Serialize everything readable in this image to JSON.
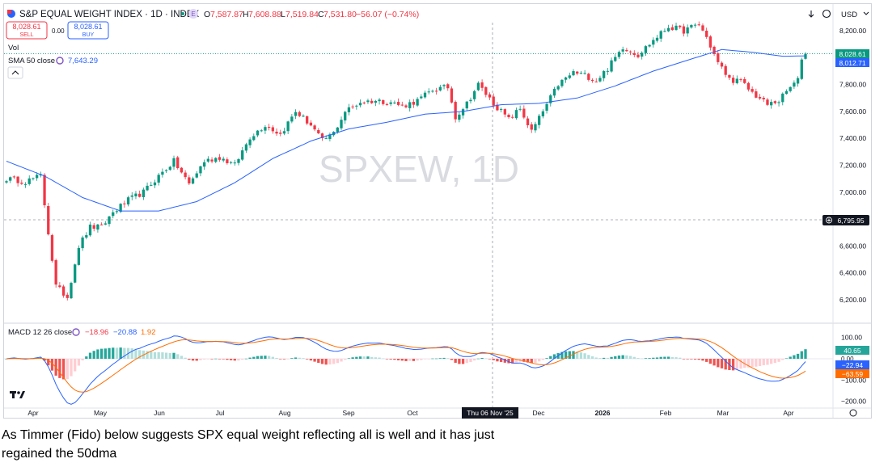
{
  "header": {
    "symbol_title": "S&P EQUAL WEIGHT INDEX · 1D · INDEX",
    "exchange_badge": "E",
    "open_label": "O",
    "open": "7,587.87",
    "high_label": "H",
    "high": "7,608.88",
    "low_label": "L",
    "low": "7,519.84",
    "close_label": "C",
    "close": "7,531.80",
    "change": "−56.07 (−0.74%)",
    "sell_price": "8,028.61",
    "sell_label": "SELL",
    "spread": "0.00",
    "buy_price": "8,028.61",
    "buy_label": "BUY",
    "currency": "USD"
  },
  "indicators": {
    "vol_label": "Vol",
    "sma_label": "SMA 50 close",
    "sma_value": "7,643.29",
    "macd_label": "MACD 12 26 close",
    "macd_values": [
      "−18.96",
      "−20.88",
      "1.92"
    ]
  },
  "watermark": "SPXEW, 1D",
  "crosshair": {
    "date_label": "Thu 06 Nov '25",
    "price_label": "6,795.95"
  },
  "price_badges": {
    "last": "8,028.61",
    "sma": "8,012.71"
  },
  "macd_badges": {
    "hist": "40.65",
    "macd": "−22.94",
    "signal": "−63.59"
  },
  "macd_zero_label": "0.00",
  "colors": {
    "up": "#089981",
    "down": "#f23645",
    "sma": "#2962ff",
    "signal": "#ff6d00",
    "hist_up": "#26a69a",
    "hist_down": "#ef5350"
  },
  "chart_data": {
    "type": "candlestick",
    "price_axis_ticks": [
      "8,200.00",
      "8,000.00",
      "7,800.00",
      "7,600.00",
      "7,400.00",
      "7,200.00",
      "7,000.00",
      "6,800.00",
      "6,600.00",
      "6,400.00",
      "6,200.00"
    ],
    "macd_axis_ticks": [
      "100.00",
      "−100.00",
      "−200.00"
    ],
    "x_axis_labels": [
      "Apr",
      "May",
      "Jun",
      "Jul",
      "Aug",
      "Sep",
      "Oct",
      "Dec",
      "2026",
      "Feb",
      "Mar",
      "Apr"
    ],
    "ylim": [
      6100,
      8300
    ],
    "price_path": [
      [
        0,
        7100
      ],
      [
        5,
        7080
      ],
      [
        9,
        7120
      ],
      [
        11,
        6700
      ],
      [
        13,
        6300
      ],
      [
        16,
        6220
      ],
      [
        19,
        6600
      ],
      [
        22,
        6740
      ],
      [
        25,
        6740
      ],
      [
        28,
        6850
      ],
      [
        32,
        6940
      ],
      [
        36,
        7000
      ],
      [
        40,
        7120
      ],
      [
        44,
        7230
      ],
      [
        48,
        7060
      ],
      [
        52,
        7230
      ],
      [
        56,
        7260
      ],
      [
        60,
        7200
      ],
      [
        64,
        7410
      ],
      [
        68,
        7500
      ],
      [
        72,
        7430
      ],
      [
        76,
        7600
      ],
      [
        80,
        7500
      ],
      [
        83,
        7380
      ],
      [
        86,
        7440
      ],
      [
        89,
        7600
      ],
      [
        93,
        7670
      ],
      [
        97,
        7680
      ],
      [
        101,
        7670
      ],
      [
        104,
        7640
      ],
      [
        108,
        7680
      ],
      [
        112,
        7760
      ],
      [
        116,
        7780
      ],
      [
        118,
        7560
      ],
      [
        121,
        7660
      ],
      [
        124,
        7800
      ],
      [
        128,
        7660
      ],
      [
        132,
        7540
      ],
      [
        135,
        7620
      ],
      [
        138,
        7450
      ],
      [
        141,
        7600
      ],
      [
        145,
        7800
      ],
      [
        149,
        7890
      ],
      [
        152,
        7870
      ],
      [
        155,
        7830
      ],
      [
        158,
        7920
      ],
      [
        162,
        8080
      ],
      [
        166,
        8020
      ],
      [
        170,
        8130
      ],
      [
        174,
        8230
      ],
      [
        178,
        8200
      ],
      [
        182,
        8250
      ],
      [
        184,
        8150
      ],
      [
        187,
        7960
      ],
      [
        190,
        7840
      ],
      [
        193,
        7820
      ],
      [
        196,
        7740
      ],
      [
        200,
        7650
      ],
      [
        203,
        7680
      ],
      [
        206,
        7780
      ],
      [
        208,
        7830
      ],
      [
        209,
        8000
      ],
      [
        210,
        8029
      ]
    ],
    "sma50_path": [
      [
        0,
        7230
      ],
      [
        10,
        7120
      ],
      [
        20,
        6960
      ],
      [
        30,
        6860
      ],
      [
        40,
        6860
      ],
      [
        50,
        6930
      ],
      [
        60,
        7070
      ],
      [
        70,
        7250
      ],
      [
        80,
        7380
      ],
      [
        90,
        7470
      ],
      [
        100,
        7520
      ],
      [
        110,
        7580
      ],
      [
        120,
        7600
      ],
      [
        130,
        7650
      ],
      [
        140,
        7660
      ],
      [
        150,
        7700
      ],
      [
        160,
        7790
      ],
      [
        170,
        7900
      ],
      [
        180,
        7990
      ],
      [
        188,
        8060
      ],
      [
        196,
        8040
      ],
      [
        204,
        8010
      ],
      [
        210,
        8013
      ]
    ]
  },
  "caption_line1": "As Timmer (Fido) below suggests SPX equal weight reflecting all is well and it has just",
  "caption_line2": "regained the 50dma"
}
